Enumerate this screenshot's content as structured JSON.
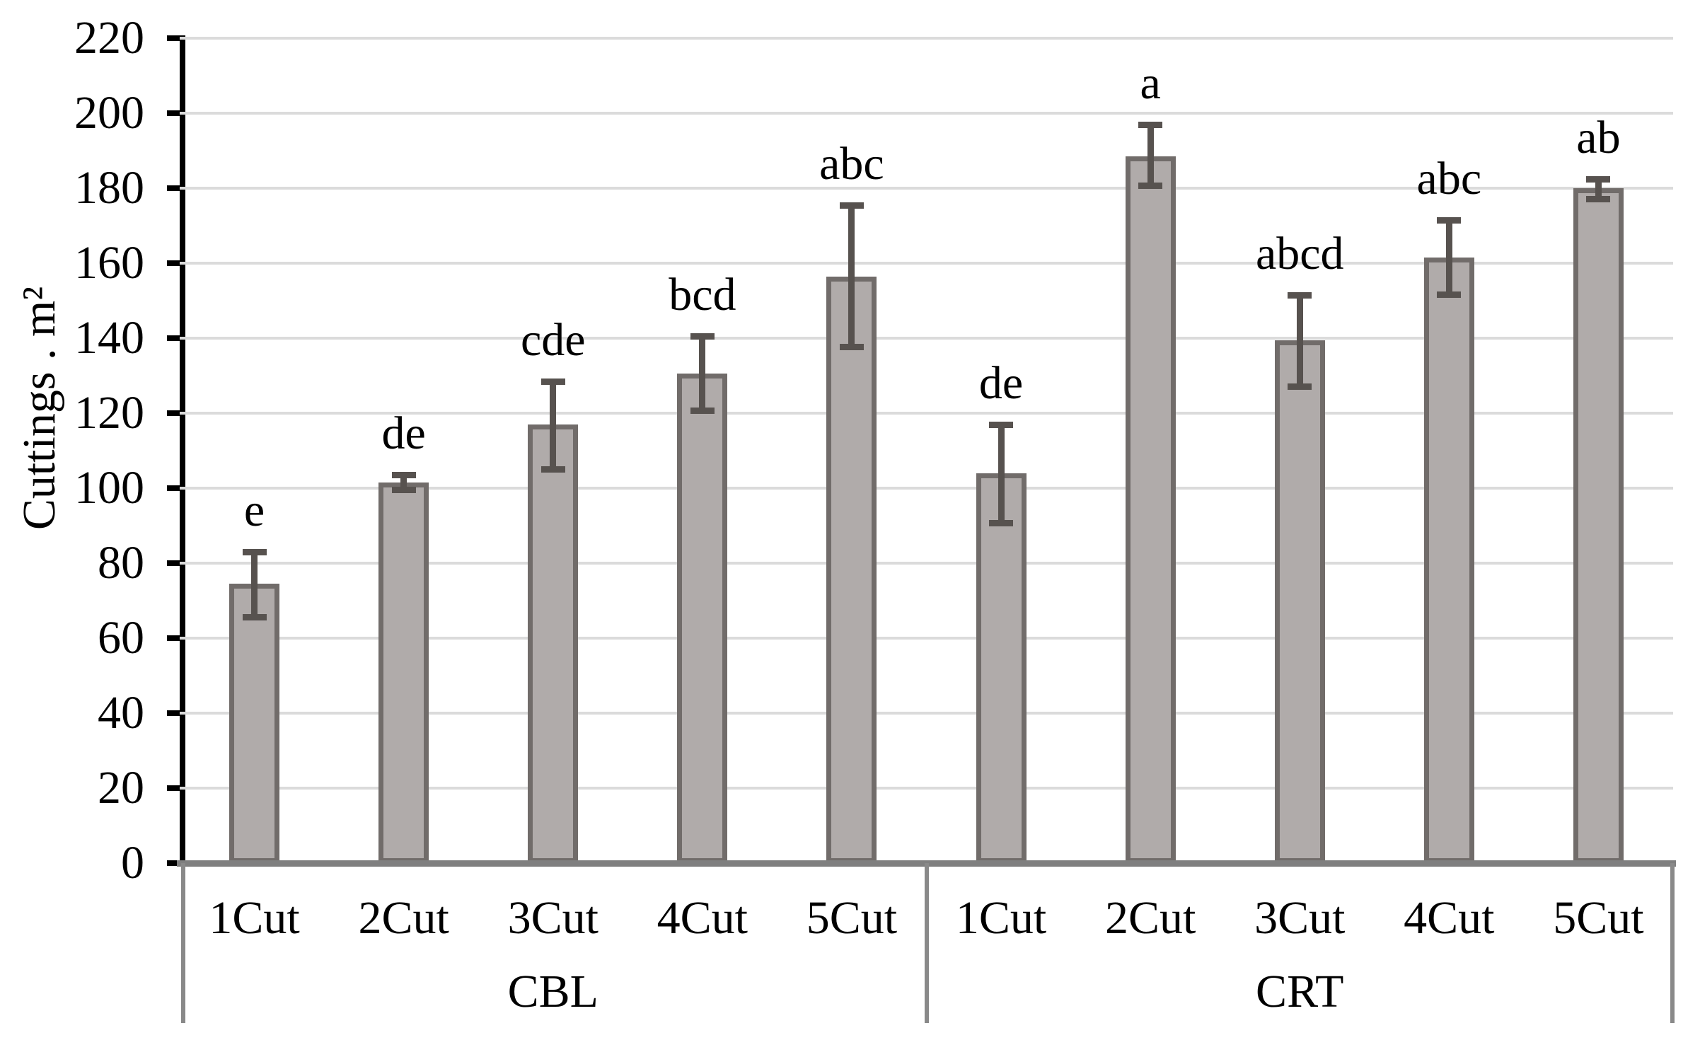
{
  "chart_data": {
    "type": "bar",
    "title": "",
    "ylabel": "Cuttings . m²",
    "xlabel": "",
    "ylim": [
      0,
      220
    ],
    "ytick_step": 20,
    "yticks": [
      0,
      20,
      40,
      60,
      80,
      100,
      120,
      140,
      160,
      180,
      200,
      220
    ],
    "grid": true,
    "legend": "none",
    "bar_fill_color": "#b0abaa",
    "bar_border_color": "#716c6a",
    "error_bar_color": "#57524f",
    "gridline_color": "#dbdbdb",
    "groups": [
      {
        "label": "CBL",
        "categories": [
          "1Cut",
          "2Cut",
          "3Cut",
          "4Cut",
          "5Cut"
        ],
        "values": [
          74.5,
          101.5,
          117,
          130.5,
          156.5
        ],
        "error_upper": [
          83,
          103.5,
          128.5,
          140.5,
          175.5
        ],
        "error_lower": [
          65.5,
          99.5,
          105,
          120.5,
          137.5
        ],
        "sig_letters": [
          "e",
          "de",
          "cde",
          "bcd",
          "abc"
        ]
      },
      {
        "label": "CRT",
        "categories": [
          "1Cut",
          "2Cut",
          "3Cut",
          "4Cut",
          "5Cut"
        ],
        "values": [
          104,
          188.5,
          139.5,
          161.5,
          180
        ],
        "error_upper": [
          117,
          197,
          151.5,
          171.5,
          182.5
        ],
        "error_lower": [
          90.5,
          180.5,
          127,
          151.5,
          177
        ],
        "sig_letters": [
          "de",
          "a",
          "abcd",
          "abc",
          "ab"
        ]
      }
    ]
  }
}
